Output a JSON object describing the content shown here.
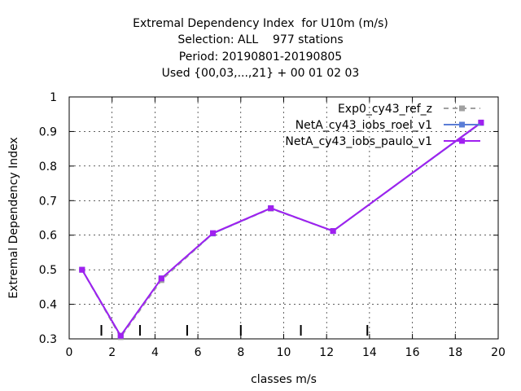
{
  "chart_data": {
    "type": "line",
    "title_lines": [
      "Extremal Dependency Index  for U10m (m/s)",
      "Selection: ALL    977 stations",
      "Period: 20190801-20190805",
      "Used {00,03,...,21} + 00 01 02 03"
    ],
    "xlabel": "classes m/s",
    "ylabel": "Extremal Dependency Index",
    "xlim": [
      0,
      20
    ],
    "ylim": [
      0.3,
      1
    ],
    "x_ticks": [
      0,
      2,
      4,
      6,
      8,
      10,
      12,
      14,
      16,
      18,
      20
    ],
    "x_tick_labels": [
      "0",
      "2",
      "4",
      "6",
      "8",
      "10",
      "12",
      "14",
      "16",
      "18",
      "20"
    ],
    "y_ticks": [
      0.3,
      0.4,
      0.5,
      0.6,
      0.7,
      0.8,
      0.9,
      1
    ],
    "y_tick_labels": [
      "0.3",
      "0.4",
      "0.5",
      "0.6",
      "0.7",
      "0.8",
      "0.9",
      "1"
    ],
    "grid": true,
    "legend_position": "top-right",
    "class_boundaries": [
      1.5,
      3.3,
      5.5,
      8,
      10.8,
      13.9
    ],
    "series": [
      {
        "name": "Exp0_cy43_ref_z",
        "color": "#a0a0a0",
        "dash": true,
        "x": [
          0.6,
          2.4,
          4.3,
          6.7,
          9.4,
          12.3,
          19.2
        ],
        "y": [
          0.5,
          0.305,
          0.47,
          0.605,
          0.677,
          0.612,
          0.925
        ]
      },
      {
        "name": "NetA_cy43_iobs_roel_v1",
        "color": "#5a7dd6",
        "dash": false,
        "x": [
          0.6,
          2.4,
          4.3,
          6.7,
          9.4,
          12.3,
          19.2
        ],
        "y": [
          0.5,
          0.309,
          0.475,
          0.605,
          0.678,
          0.612,
          0.925
        ]
      },
      {
        "name": "NetA_cy43_iobs_paulo_v1",
        "color": "#a020f0",
        "dash": false,
        "x": [
          0.6,
          2.4,
          4.3,
          6.7,
          9.4,
          12.3,
          19.2
        ],
        "y": [
          0.5,
          0.309,
          0.475,
          0.606,
          0.678,
          0.612,
          0.926
        ]
      }
    ]
  }
}
